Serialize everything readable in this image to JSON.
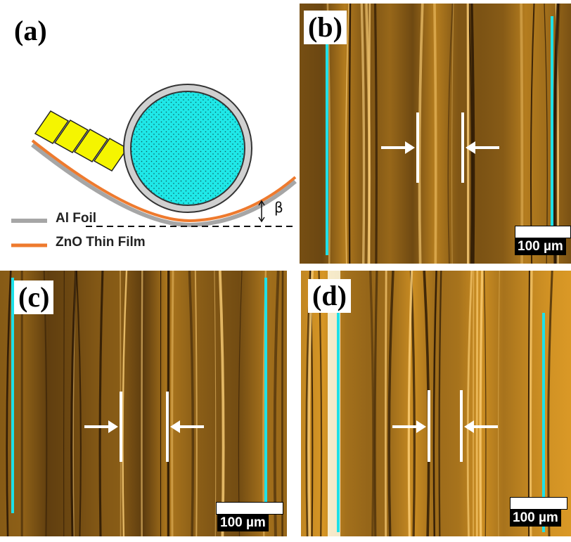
{
  "figure": {
    "panels": [
      {
        "id": "a",
        "label": "(a)"
      },
      {
        "id": "b",
        "label": "(b)"
      },
      {
        "id": "c",
        "label": "(c)"
      },
      {
        "id": "d",
        "label": "(d)"
      }
    ],
    "schematic": {
      "legend": [
        {
          "label": "Al Foil",
          "color": "#a6a6a6"
        },
        {
          "label": "ZnO Thin Film",
          "color": "#ee7a2e"
        }
      ],
      "angle_symbol": "β",
      "cylinder_color": "#1fe8e8",
      "electrode_color": "#f5f500"
    },
    "scale_bar_label": "100 µm",
    "colors": {
      "guide_line": "#1ee0e8",
      "marker": "#ffffff",
      "micrograph_base": "#3a2208",
      "micrograph_bright": "#f0a92a"
    }
  }
}
